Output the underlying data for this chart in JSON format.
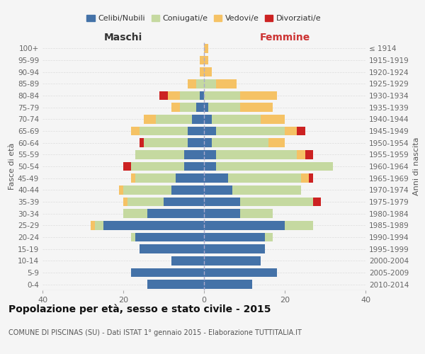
{
  "age_groups": [
    "0-4",
    "5-9",
    "10-14",
    "15-19",
    "20-24",
    "25-29",
    "30-34",
    "35-39",
    "40-44",
    "45-49",
    "50-54",
    "55-59",
    "60-64",
    "65-69",
    "70-74",
    "75-79",
    "80-84",
    "85-89",
    "90-94",
    "95-99",
    "100+"
  ],
  "birth_years": [
    "2010-2014",
    "2005-2009",
    "2000-2004",
    "1995-1999",
    "1990-1994",
    "1985-1989",
    "1980-1984",
    "1975-1979",
    "1970-1974",
    "1965-1969",
    "1960-1964",
    "1955-1959",
    "1950-1954",
    "1945-1949",
    "1940-1944",
    "1935-1939",
    "1930-1934",
    "1925-1929",
    "1920-1924",
    "1915-1919",
    "≤ 1914"
  ],
  "male_celibi": [
    14,
    18,
    8,
    16,
    17,
    25,
    14,
    10,
    8,
    7,
    5,
    5,
    4,
    4,
    3,
    2,
    1,
    0,
    0,
    0,
    0
  ],
  "male_coniugati": [
    0,
    0,
    0,
    0,
    1,
    2,
    6,
    9,
    12,
    10,
    13,
    12,
    11,
    12,
    9,
    4,
    5,
    2,
    0,
    0,
    0
  ],
  "male_vedovi": [
    0,
    0,
    0,
    0,
    0,
    1,
    0,
    1,
    1,
    1,
    0,
    0,
    0,
    2,
    3,
    2,
    3,
    2,
    1,
    1,
    0
  ],
  "male_divorziati": [
    0,
    0,
    0,
    0,
    0,
    0,
    0,
    0,
    0,
    0,
    2,
    0,
    1,
    0,
    0,
    0,
    2,
    0,
    0,
    0,
    0
  ],
  "female_celibi": [
    12,
    18,
    14,
    15,
    15,
    20,
    9,
    9,
    7,
    6,
    3,
    3,
    2,
    3,
    2,
    1,
    0,
    0,
    0,
    0,
    0
  ],
  "female_coniugati": [
    0,
    0,
    0,
    0,
    2,
    7,
    8,
    18,
    17,
    18,
    29,
    20,
    14,
    17,
    12,
    8,
    9,
    3,
    0,
    0,
    0
  ],
  "female_vedovi": [
    0,
    0,
    0,
    0,
    0,
    0,
    0,
    0,
    0,
    2,
    0,
    2,
    4,
    3,
    6,
    8,
    9,
    5,
    2,
    1,
    1
  ],
  "female_divorziati": [
    0,
    0,
    0,
    0,
    0,
    0,
    0,
    2,
    0,
    1,
    0,
    2,
    0,
    2,
    0,
    0,
    0,
    0,
    0,
    0,
    0
  ],
  "colors": {
    "celibi": "#4472a8",
    "coniugati": "#c5d9a0",
    "vedovi": "#f5c265",
    "divorziati": "#cc2222"
  },
  "title": "Popolazione per età, sesso e stato civile - 2015",
  "subtitle": "COMUNE DI PISCINAS (SU) - Dati ISTAT 1° gennaio 2015 - Elaborazione TUTTITALIA.IT",
  "xlabel_left": "Maschi",
  "xlabel_right": "Femmine",
  "ylabel_left": "Fasce di età",
  "ylabel_right": "Anni di nascita",
  "xlim": 40,
  "background_color": "#f5f5f5"
}
